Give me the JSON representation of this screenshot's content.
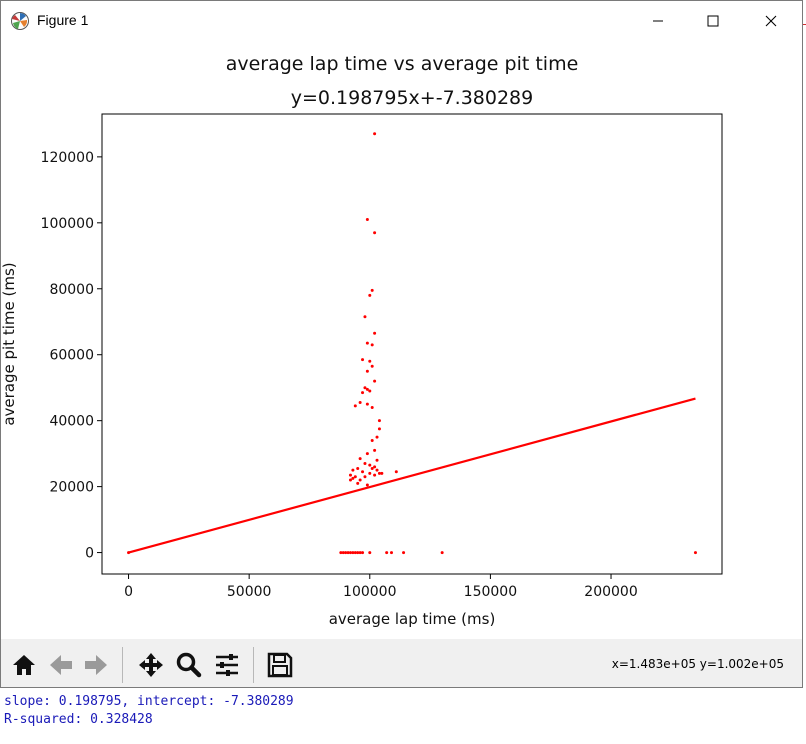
{
  "window": {
    "title": "Figure 1",
    "icons": {
      "app": "matplotlib-icon",
      "minimize": "minimize-icon",
      "maximize": "maximize-icon",
      "close": "close-icon"
    }
  },
  "toolbar": {
    "buttons": [
      "home-icon",
      "back-arrow-icon",
      "forward-arrow-icon",
      "pan-icon",
      "zoom-icon",
      "subplots-icon",
      "save-icon"
    ],
    "coords": "x=1.483e+05 y=1.002e+05"
  },
  "console": {
    "line1": "slope: 0.198795, intercept: -7.380289",
    "line2": "R-squared: 0.328428"
  },
  "chart_data": {
    "type": "scatter",
    "title": "average lap time vs average pit time",
    "subtitle": "y=0.198795x+-7.380289",
    "xlabel": "average lap time (ms)",
    "ylabel": "average pit time (ms)",
    "xlim": [
      -11000,
      246000
    ],
    "ylim": [
      -6500,
      133000
    ],
    "xticks": [
      0,
      50000,
      100000,
      150000,
      200000
    ],
    "yticks": [
      0,
      20000,
      40000,
      60000,
      80000,
      100000,
      120000
    ],
    "color": "#ff0000",
    "fit_line": {
      "slope": 0.198795,
      "intercept": -7.380289,
      "x_range": [
        0,
        235000
      ]
    },
    "points": [
      [
        235000,
        0
      ],
      [
        130000,
        0
      ],
      [
        114000,
        0
      ],
      [
        109000,
        0
      ],
      [
        107000,
        0
      ],
      [
        100000,
        0
      ],
      [
        97000,
        0
      ],
      [
        96000,
        0
      ],
      [
        95000,
        0
      ],
      [
        94000,
        0
      ],
      [
        93000,
        0
      ],
      [
        92000,
        0
      ],
      [
        91000,
        0
      ],
      [
        90000,
        0
      ],
      [
        89000,
        0
      ],
      [
        88000,
        0
      ],
      [
        0,
        0
      ],
      [
        102000,
        127000
      ],
      [
        99000,
        101000
      ],
      [
        102000,
        97000
      ],
      [
        101000,
        79500
      ],
      [
        100000,
        78000
      ],
      [
        102000,
        66500
      ],
      [
        99000,
        63500
      ],
      [
        101000,
        63000
      ],
      [
        98000,
        71500
      ],
      [
        97000,
        58500
      ],
      [
        100000,
        58000
      ],
      [
        101000,
        56500
      ],
      [
        99000,
        55000
      ],
      [
        102000,
        52000
      ],
      [
        98000,
        50000
      ],
      [
        99000,
        49500
      ],
      [
        100000,
        49000
      ],
      [
        97000,
        48500
      ],
      [
        96000,
        45500
      ],
      [
        99000,
        45000
      ],
      [
        94000,
        44500
      ],
      [
        101000,
        44000
      ],
      [
        104000,
        40000
      ],
      [
        104000,
        37500
      ],
      [
        103000,
        35000
      ],
      [
        101000,
        34000
      ],
      [
        102000,
        31000
      ],
      [
        99000,
        30000
      ],
      [
        103000,
        28000
      ],
      [
        96000,
        28500
      ],
      [
        98000,
        27000
      ],
      [
        100000,
        26500
      ],
      [
        102000,
        26000
      ],
      [
        101000,
        25500
      ],
      [
        95000,
        25500
      ],
      [
        93000,
        25000
      ],
      [
        103000,
        25000
      ],
      [
        97000,
        24500
      ],
      [
        100000,
        24000
      ],
      [
        104000,
        24000
      ],
      [
        105000,
        24000
      ],
      [
        111000,
        24500
      ],
      [
        92000,
        23500
      ],
      [
        94000,
        23000
      ],
      [
        102000,
        23500
      ],
      [
        98000,
        23000
      ],
      [
        93000,
        22500
      ],
      [
        96000,
        22000
      ],
      [
        92000,
        22000
      ],
      [
        95000,
        21000
      ],
      [
        99000,
        20500
      ]
    ]
  }
}
